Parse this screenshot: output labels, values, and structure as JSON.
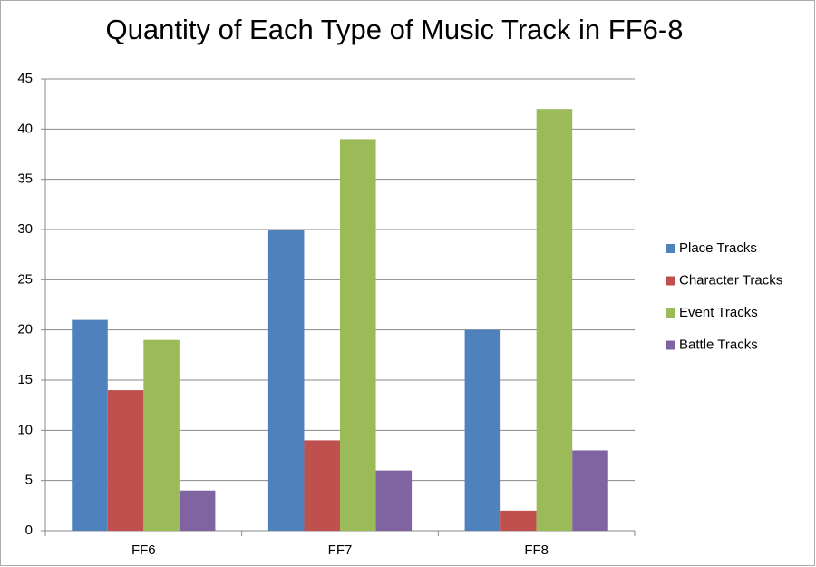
{
  "chart_data": {
    "type": "bar",
    "title": "Quantity of Each Type of Music Track in FF6-8",
    "categories": [
      "FF6",
      "FF7",
      "FF8"
    ],
    "series": [
      {
        "name": "Place Tracks",
        "color": "#4f81bd",
        "values": [
          21,
          30,
          20
        ]
      },
      {
        "name": "Character Tracks",
        "color": "#c0504d",
        "values": [
          14,
          9,
          2
        ]
      },
      {
        "name": "Event Tracks",
        "color": "#9bbb59",
        "values": [
          19,
          39,
          42
        ]
      },
      {
        "name": "Battle Tracks",
        "color": "#8064a2",
        "values": [
          4,
          6,
          8
        ]
      }
    ],
    "ylim": [
      0,
      45
    ],
    "yticks": [
      0,
      5,
      10,
      15,
      20,
      25,
      30,
      35,
      40,
      45
    ],
    "grid": true,
    "legend": "right"
  }
}
